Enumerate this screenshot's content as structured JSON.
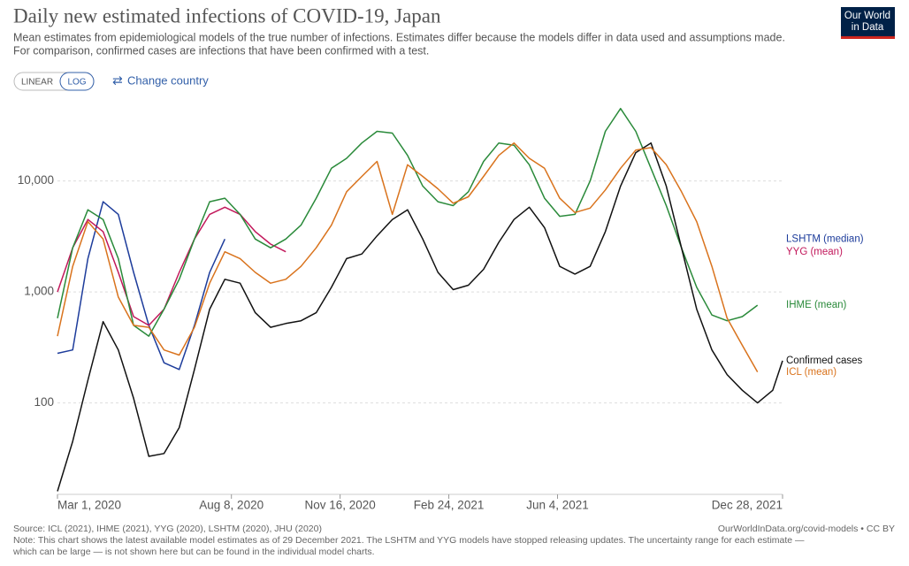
{
  "chart_data": {
    "type": "line",
    "title": "Daily new estimated infections of COVID-19, Japan",
    "subtitle": [
      "Mean estimates from epidemiological models of the true number of infections. Estimates differ because the models differ in data used and assumptions made.",
      "For comparison, confirmed cases are infections that have been confirmed with a test."
    ],
    "controls": {
      "linear": "LINEAR",
      "log": "LOG",
      "change_country": "Change country"
    },
    "logo": [
      "Our World",
      "in Data"
    ],
    "source": "Source: ICL (2021), IHME (2021), YYG (2020), LSHTM (2020), JHU (2020)",
    "note": [
      "Note: This chart shows the latest available model estimates as of 29 December 2021. The LSHTM and YYG models have stopped releasing updates. The uncertainty range for each estimate —",
      "which can be large — is not shown here but can be found in the individual model charts."
    ],
    "url": "OurWorldInData.org/covid-models • CC BY",
    "log_scale": true,
    "grid": true,
    "xlim": [
      "2020-03-01",
      "2021-12-28"
    ],
    "xticks": [
      {
        "value": "2020-03-01",
        "label": "Mar 1, 2020"
      },
      {
        "value": "2020-08-08",
        "label": "Aug 8, 2020"
      },
      {
        "value": "2020-11-16",
        "label": "Nov 16, 2020"
      },
      {
        "value": "2021-02-24",
        "label": "Feb 24, 2021"
      },
      {
        "value": "2021-06-04",
        "label": "Jun 4, 2021"
      },
      {
        "value": "2021-12-28",
        "label": "Dec 28, 2021"
      }
    ],
    "ylim": [
      15,
      60000
    ],
    "yticks": [
      {
        "value": 10000,
        "label": "10,000"
      },
      {
        "value": 1000,
        "label": "1,000"
      },
      100
    ],
    "x": [
      "2020-03-01",
      "2020-03-15",
      "2020-03-29",
      "2020-04-12",
      "2020-04-26",
      "2020-05-10",
      "2020-05-24",
      "2020-06-07",
      "2020-06-21",
      "2020-07-05",
      "2020-07-19",
      "2020-08-02",
      "2020-08-16",
      "2020-08-30",
      "2020-09-13",
      "2020-09-27",
      "2020-10-11",
      "2020-10-25",
      "2020-11-08",
      "2020-11-22",
      "2020-12-06",
      "2020-12-20",
      "2021-01-03",
      "2021-01-17",
      "2021-01-31",
      "2021-02-14",
      "2021-02-28",
      "2021-03-14",
      "2021-03-28",
      "2021-04-11",
      "2021-04-25",
      "2021-05-09",
      "2021-05-23",
      "2021-06-06",
      "2021-06-20",
      "2021-07-04",
      "2021-07-18",
      "2021-08-01",
      "2021-08-15",
      "2021-08-29",
      "2021-09-12",
      "2021-09-26",
      "2021-10-10",
      "2021-10-24",
      "2021-11-07",
      "2021-11-21",
      "2021-12-05",
      "2021-12-19",
      "2021-12-28"
    ],
    "series": [
      {
        "name": "LSHTM (median)",
        "color": "#1d3c9b",
        "values": [
          280,
          300,
          2000,
          6500,
          5000,
          1500,
          500,
          230,
          200,
          500,
          1500,
          3000,
          null,
          null,
          null,
          null,
          null,
          null,
          null,
          null,
          null,
          null,
          null,
          null,
          null,
          null,
          null,
          null,
          null,
          null,
          null,
          null,
          null,
          null,
          null,
          null,
          null,
          null,
          null,
          null,
          null,
          null,
          null,
          null,
          null,
          null,
          null,
          null,
          null
        ]
      },
      {
        "name": "YYG (mean)",
        "color": "#c2185b",
        "values": [
          1000,
          2500,
          4500,
          3500,
          1500,
          600,
          500,
          700,
          1500,
          3000,
          5000,
          5800,
          5000,
          3500,
          2700,
          2300,
          null,
          null,
          null,
          null,
          null,
          null,
          null,
          null,
          null,
          null,
          null,
          null,
          null,
          null,
          null,
          null,
          null,
          null,
          null,
          null,
          null,
          null,
          null,
          null,
          null,
          null,
          null,
          null,
          null,
          null,
          null,
          null,
          null
        ]
      },
      {
        "name": "IHME (mean)",
        "color": "#2a8a3a",
        "values": [
          580,
          2500,
          5500,
          4500,
          2000,
          500,
          400,
          700,
          1300,
          3000,
          6500,
          7000,
          5000,
          3000,
          2500,
          3000,
          4000,
          7000,
          13000,
          16000,
          22000,
          28000,
          27000,
          17000,
          9000,
          6500,
          6000,
          8000,
          15000,
          22000,
          21000,
          14000,
          7000,
          4800,
          5000,
          10000,
          28000,
          45000,
          28000,
          13000,
          6000,
          2500,
          1100,
          620,
          550,
          600,
          760,
          null,
          null
        ]
      },
      {
        "name": "Confirmed cases",
        "color": "#111111",
        "values": [
          16,
          45,
          160,
          540,
          300,
          110,
          33,
          35,
          60,
          200,
          700,
          1300,
          1200,
          650,
          480,
          520,
          550,
          650,
          1100,
          2000,
          2200,
          3200,
          4500,
          5500,
          3000,
          1500,
          1050,
          1150,
          1600,
          2800,
          4500,
          5800,
          3800,
          1700,
          1450,
          1700,
          3500,
          9000,
          18000,
          22000,
          9000,
          2500,
          700,
          300,
          180,
          130,
          100,
          130,
          240
        ]
      },
      {
        "name": "ICL (mean)",
        "color": "#d9731d",
        "values": [
          400,
          1700,
          4300,
          3000,
          900,
          500,
          480,
          300,
          270,
          480,
          1200,
          2300,
          2000,
          1500,
          1200,
          1300,
          1700,
          2500,
          4000,
          8000,
          11000,
          15000,
          5000,
          14000,
          11000,
          8500,
          6300,
          7200,
          11000,
          17000,
          22000,
          16000,
          13000,
          7000,
          5200,
          5700,
          8300,
          13000,
          19000,
          20000,
          14000,
          8000,
          4300,
          1700,
          580,
          330,
          190,
          null,
          null
        ]
      }
    ]
  }
}
